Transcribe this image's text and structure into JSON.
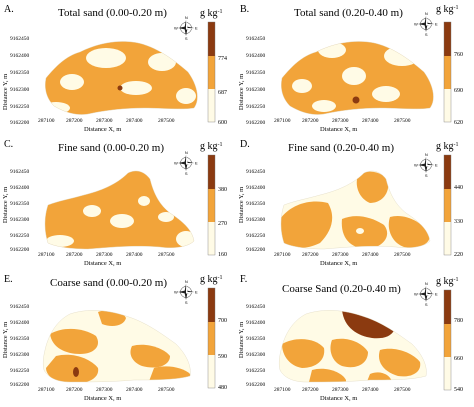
{
  "figure": {
    "colors": {
      "light": "#fffbe6",
      "mid": "#f2a43a",
      "dark": "#8b3a10",
      "background": "#ffffff"
    },
    "panels": [
      {
        "letter": "A.",
        "title": "Total sand (0.00-0.20 m)",
        "unit": "g kg",
        "unit_exp": "-1",
        "legend_ticks": [
          "774",
          "687",
          "600"
        ],
        "y_ticks": [
          "9162450",
          "9162400",
          "9162350",
          "9162300",
          "9162250",
          "9162200"
        ],
        "x_ticks": [
          "287100",
          "287200",
          "287300",
          "287400",
          "287500"
        ],
        "x_label": "Distance X, m",
        "y_label": "Distance Y, m"
      },
      {
        "letter": "B.",
        "title": "Total sand (0.20-0.40 m)",
        "unit": "g kg",
        "unit_exp": "-1",
        "legend_ticks": [
          "760",
          "690",
          "620"
        ],
        "y_ticks": [
          "9162450",
          "9162400",
          "9162350",
          "9162300",
          "9162250",
          "9162200"
        ],
        "x_ticks": [
          "287100",
          "287200",
          "287300",
          "287400",
          "287500"
        ],
        "x_label": "Distance X, m",
        "y_label": "Distance Y, m"
      },
      {
        "letter": "C.",
        "title": "Fine sand (0.00-0.20 m)",
        "unit": "g kg",
        "unit_exp": "-1",
        "legend_ticks": [
          "380",
          "270",
          "160"
        ],
        "y_ticks": [
          "9162450",
          "9162400",
          "9162350",
          "9162300",
          "9162250",
          "9162200"
        ],
        "x_ticks": [
          "287100",
          "287200",
          "287300",
          "287400",
          "287500"
        ],
        "x_label": "Distance X, m",
        "y_label": "Distance Y, m"
      },
      {
        "letter": "D.",
        "title": "Fine sand (0.20-0.40 m)",
        "unit": "g kg",
        "unit_exp": "-1",
        "legend_ticks": [
          "440",
          "330",
          "220"
        ],
        "y_ticks": [
          "9162450",
          "9162400",
          "9162350",
          "9162300",
          "9162250",
          "9162200"
        ],
        "x_ticks": [
          "287100",
          "287200",
          "287300",
          "287400",
          "287500"
        ],
        "x_label": "Distance X, m",
        "y_label": "Distance Y, m"
      },
      {
        "letter": "E.",
        "title": "Coarse sand (0.00-0.20 m)",
        "unit": "g kg",
        "unit_exp": "-1",
        "legend_ticks": [
          "700",
          "590",
          "480"
        ],
        "y_ticks": [
          "9162450",
          "9162400",
          "9162350",
          "9162300",
          "9162250",
          "9162200"
        ],
        "x_ticks": [
          "287100",
          "287200",
          "287300",
          "287400",
          "287500"
        ],
        "x_label": "Distance X, m",
        "y_label": "Distance Y, m"
      },
      {
        "letter": "F.",
        "title": "Coarse Sand (0.20-0.40 m)",
        "unit": "g kg",
        "unit_exp": "-1",
        "legend_ticks": [
          "780",
          "660",
          "540"
        ],
        "y_ticks": [
          "9162450",
          "9162400",
          "9162350",
          "9162300",
          "9162250",
          "9162200"
        ],
        "x_ticks": [
          "287100",
          "287200",
          "287300",
          "287400",
          "287500"
        ],
        "x_label": "Distance X, m",
        "y_label": "Distance Y, m"
      }
    ],
    "compass": {
      "n": "N",
      "s": "S",
      "e": "E",
      "w": "W"
    }
  }
}
